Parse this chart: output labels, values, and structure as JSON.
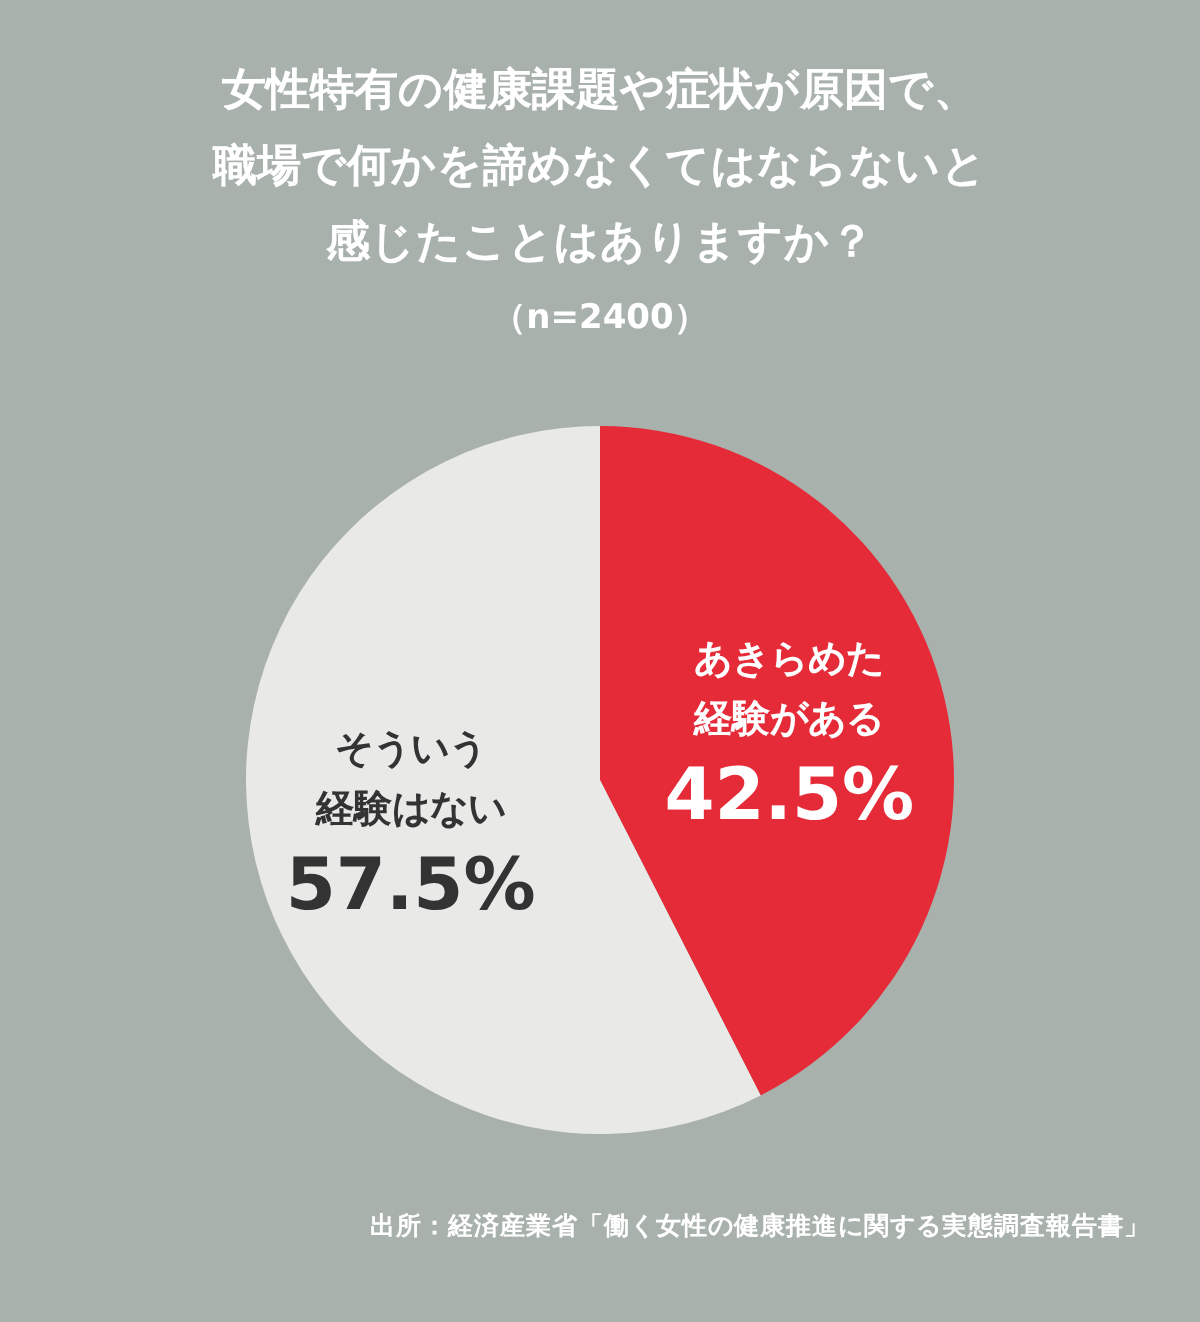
{
  "chart_data": {
    "type": "pie",
    "title": "女性特有の健康課題や症状が原因で、職場で何かを諦めなくてはならないと感じたことはありますか？",
    "subtitle": "（n=2400）",
    "categories": [
      "あきらめた経験がある",
      "そういう経験はない"
    ],
    "values": [
      42.5,
      57.5
    ],
    "colors": [
      "#e52b38",
      "#e9e9e7"
    ],
    "value_labels": [
      "42.5%",
      "57.5%"
    ],
    "annotations": [
      "出所：経済産業省「働く女性の健康推進に関する実態調査報告書」"
    ]
  }
}
